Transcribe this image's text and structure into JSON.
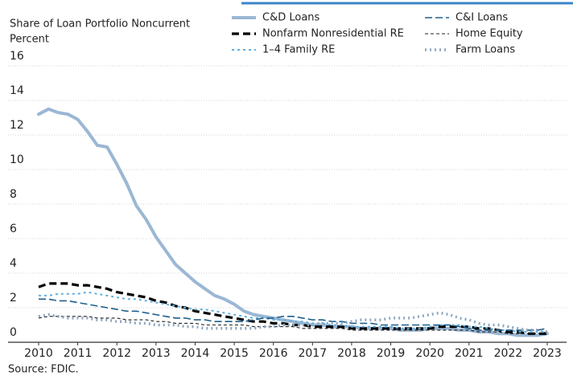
{
  "chart_data": {
    "type": "line",
    "ylabel": "Share of Loan Portfolio Noncurrent",
    "yunit": "Percent",
    "source": "Source: FDIC.",
    "xlim": [
      2010,
      2023
    ],
    "xticks": [
      2010,
      2011,
      2012,
      2013,
      2014,
      2015,
      2016,
      2017,
      2018,
      2019,
      2020,
      2021,
      2022,
      2023
    ],
    "ylim": [
      0,
      16
    ],
    "yticks": [
      0,
      2,
      4,
      6,
      8,
      10,
      12,
      14,
      16
    ],
    "grid": true,
    "x": [
      2010,
      2010.25,
      2010.5,
      2010.75,
      2011,
      2011.25,
      2011.5,
      2011.75,
      2012,
      2012.25,
      2012.5,
      2012.75,
      2013,
      2013.25,
      2013.5,
      2013.75,
      2014,
      2014.25,
      2014.5,
      2014.75,
      2015,
      2015.25,
      2015.5,
      2015.75,
      2016,
      2016.25,
      2016.5,
      2016.75,
      2017,
      2017.25,
      2017.5,
      2017.75,
      2018,
      2018.25,
      2018.5,
      2018.75,
      2019,
      2019.25,
      2019.5,
      2019.75,
      2020,
      2020.25,
      2020.5,
      2020.75,
      2021,
      2021.25,
      2021.5,
      2021.75,
      2022,
      2022.25,
      2022.5,
      2022.75,
      2023
    ],
    "series": [
      {
        "name": "C&D Loans",
        "color": "#9bb7d4",
        "width": 4,
        "dash": "none",
        "values": [
          13.2,
          13.5,
          13.3,
          13.2,
          12.9,
          12.2,
          11.4,
          11.3,
          10.3,
          9.2,
          7.9,
          7.1,
          6.1,
          5.3,
          4.5,
          4.0,
          3.5,
          3.1,
          2.7,
          2.5,
          2.2,
          1.8,
          1.6,
          1.5,
          1.4,
          1.3,
          1.2,
          1.1,
          1.0,
          1.0,
          0.9,
          0.9,
          0.9,
          0.8,
          0.8,
          0.8,
          0.8,
          0.7,
          0.7,
          0.7,
          0.8,
          0.8,
          0.8,
          0.7,
          0.7,
          0.6,
          0.6,
          0.5,
          0.5,
          0.4,
          0.4,
          0.4,
          0.5
        ]
      },
      {
        "name": "Nonfarm Nonresidential RE",
        "color": "#000000",
        "width": 3.2,
        "dash": "9,5",
        "values": [
          3.2,
          3.4,
          3.4,
          3.4,
          3.3,
          3.3,
          3.2,
          3.1,
          2.9,
          2.8,
          2.7,
          2.6,
          2.4,
          2.3,
          2.1,
          2.0,
          1.8,
          1.7,
          1.6,
          1.5,
          1.4,
          1.3,
          1.2,
          1.2,
          1.1,
          1.1,
          1.0,
          1.0,
          0.9,
          0.9,
          0.9,
          0.9,
          0.8,
          0.8,
          0.8,
          0.8,
          0.8,
          0.8,
          0.8,
          0.8,
          0.8,
          0.9,
          0.9,
          0.9,
          0.9,
          0.8,
          0.8,
          0.7,
          0.6,
          0.6,
          0.5,
          0.5,
          0.5
        ]
      },
      {
        "name": "1–4 Family RE",
        "color": "#5fb0e0",
        "width": 2,
        "dash": "3,4",
        "values": [
          2.7,
          2.7,
          2.8,
          2.8,
          2.8,
          2.9,
          2.8,
          2.7,
          2.6,
          2.5,
          2.5,
          2.4,
          2.3,
          2.2,
          2.1,
          2.0,
          1.9,
          1.9,
          1.8,
          1.7,
          1.6,
          1.5,
          1.4,
          1.4,
          1.3,
          1.3,
          1.2,
          1.2,
          1.1,
          1.1,
          1.0,
          1.0,
          0.9,
          0.9,
          0.9,
          0.9,
          0.9,
          0.8,
          0.8,
          0.8,
          0.9,
          1.0,
          1.0,
          1.0,
          0.9,
          0.9,
          0.8,
          0.7,
          0.7,
          0.6,
          0.6,
          0.6,
          0.6
        ]
      },
      {
        "name": "C&I Loans",
        "color": "#1f5f8b",
        "width": 1.6,
        "dash": "9,4",
        "values": [
          2.5,
          2.5,
          2.4,
          2.4,
          2.3,
          2.2,
          2.1,
          2.0,
          1.9,
          1.8,
          1.8,
          1.7,
          1.6,
          1.5,
          1.4,
          1.4,
          1.3,
          1.3,
          1.2,
          1.2,
          1.2,
          1.2,
          1.3,
          1.4,
          1.4,
          1.5,
          1.5,
          1.4,
          1.3,
          1.3,
          1.2,
          1.2,
          1.1,
          1.1,
          1.1,
          1.0,
          1.0,
          1.0,
          1.0,
          1.0,
          1.0,
          1.0,
          1.0,
          0.9,
          0.8,
          0.7,
          0.7,
          0.7,
          0.7,
          0.7,
          0.7,
          0.7,
          0.8
        ]
      },
      {
        "name": "Home Equity",
        "color": "#222222",
        "width": 1.1,
        "dash": "4,3",
        "values": [
          1.4,
          1.5,
          1.5,
          1.5,
          1.5,
          1.5,
          1.4,
          1.4,
          1.4,
          1.3,
          1.3,
          1.3,
          1.2,
          1.2,
          1.1,
          1.1,
          1.1,
          1.0,
          1.0,
          1.0,
          1.0,
          1.0,
          0.9,
          0.9,
          0.9,
          0.9,
          0.9,
          0.8,
          0.8,
          0.8,
          0.8,
          0.8,
          0.7,
          0.7,
          0.7,
          0.7,
          0.7,
          0.7,
          0.7,
          0.7,
          0.7,
          0.7,
          0.7,
          0.7,
          0.7,
          0.6,
          0.6,
          0.6,
          0.5,
          0.5,
          0.5,
          0.5,
          0.6
        ]
      },
      {
        "name": "Farm Loans",
        "color": "#8fa7bf",
        "width": 3.5,
        "dash": "2,4",
        "values": [
          1.5,
          1.6,
          1.5,
          1.4,
          1.4,
          1.4,
          1.3,
          1.3,
          1.2,
          1.2,
          1.1,
          1.1,
          1.0,
          1.0,
          1.0,
          0.9,
          0.9,
          0.8,
          0.8,
          0.8,
          0.8,
          0.8,
          0.8,
          0.9,
          0.9,
          1.0,
          1.0,
          1.0,
          1.0,
          1.1,
          1.1,
          1.1,
          1.2,
          1.3,
          1.3,
          1.3,
          1.4,
          1.4,
          1.4,
          1.5,
          1.6,
          1.7,
          1.6,
          1.4,
          1.3,
          1.1,
          1.0,
          1.0,
          0.9,
          0.8,
          0.7,
          0.7,
          0.6
        ]
      }
    ]
  }
}
